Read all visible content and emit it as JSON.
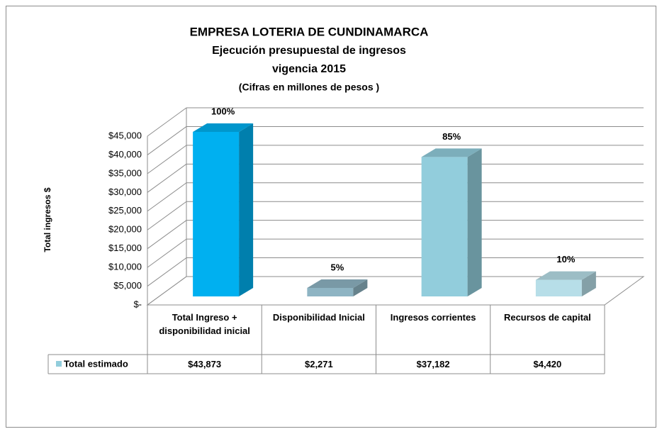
{
  "chart_data": {
    "type": "bar3d",
    "title": "EMPRESA LOTERIA DE CUNDINAMARCA",
    "subtitle": "Ejecución presupuestal de ingresos",
    "subtitle2": "vigencia 2015",
    "note": "(Cifras en millones de pesos )",
    "ylabel": "Total ingresos $",
    "categories": [
      "Total Ingreso + disponibilidad inicial",
      "Disponibilidad Inicial",
      "Ingresos corrientes",
      "Recursos de capital"
    ],
    "series": [
      {
        "name": "Total estimado",
        "color": "#92cddc",
        "values": [
          43873,
          2271,
          37182,
          4420
        ],
        "value_labels": [
          "$43,873",
          "$2,271",
          "$37,182",
          "$4,420"
        ],
        "bar_colors": [
          "#00b0f0",
          "#8eb4c3",
          "#92cddc",
          "#b7dee8"
        ],
        "percent_labels": [
          "100%",
          "5%",
          "85%",
          "10%"
        ]
      }
    ],
    "ylim": [
      0,
      45000
    ],
    "yticks": [
      {
        "value": 0,
        "label": "$-"
      },
      {
        "value": 5000,
        "label": "$5,000"
      },
      {
        "value": 10000,
        "label": "$10,000"
      },
      {
        "value": 15000,
        "label": "$15,000"
      },
      {
        "value": 20000,
        "label": "$20,000"
      },
      {
        "value": 25000,
        "label": "$25,000"
      },
      {
        "value": 30000,
        "label": "$30,000"
      },
      {
        "value": 35000,
        "label": "$35,000"
      },
      {
        "value": 40000,
        "label": "$40,000"
      },
      {
        "value": 45000,
        "label": "$45,000"
      }
    ],
    "grid": true
  }
}
